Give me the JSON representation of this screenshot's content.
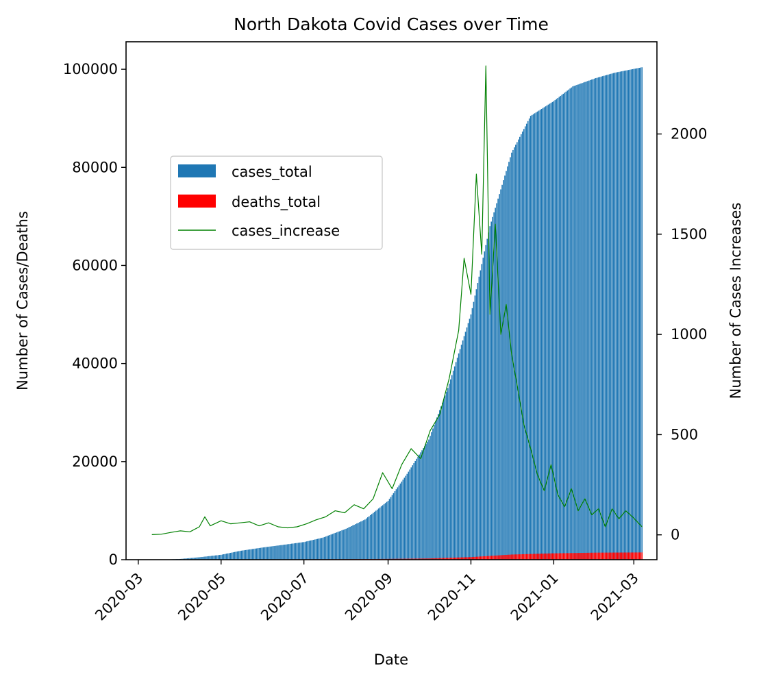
{
  "chart_data": {
    "type": "bar",
    "title": "North Dakota Covid Cases over Time",
    "xlabel": "Date",
    "ylabel": "Number of Cases/Deaths",
    "y2label": "Number of Cases Increases",
    "x_range": [
      "2020-02-21",
      "2021-03-18"
    ],
    "ylim": [
      0,
      105600
    ],
    "y2lim": [
      -124,
      2460
    ],
    "x_ticks": [
      "2020-03",
      "2020-05",
      "2020-07",
      "2020-09",
      "2020-11",
      "2021-01",
      "2021-03"
    ],
    "y_ticks": [
      0,
      20000,
      40000,
      60000,
      80000,
      100000
    ],
    "y2_ticks": [
      0,
      500,
      1000,
      1500,
      2000
    ],
    "legend": {
      "location": "upper-left",
      "entries": [
        "cases_total",
        "deaths_total",
        "cases_increase"
      ]
    },
    "grid": false,
    "colors": {
      "cases_total": "#1f77b4",
      "deaths_total": "#ff0000",
      "cases_increase": "#008000"
    },
    "series": [
      {
        "name": "cases_total",
        "axis": "left",
        "kind": "bar",
        "points": [
          [
            "2020-03-11",
            1
          ],
          [
            "2020-03-20",
            28
          ],
          [
            "2020-04-01",
            150
          ],
          [
            "2020-04-15",
            500
          ],
          [
            "2020-05-01",
            1000
          ],
          [
            "2020-05-15",
            1800
          ],
          [
            "2020-06-01",
            2500
          ],
          [
            "2020-06-15",
            3000
          ],
          [
            "2020-07-01",
            3600
          ],
          [
            "2020-07-15",
            4500
          ],
          [
            "2020-08-01",
            6300
          ],
          [
            "2020-08-15",
            8200
          ],
          [
            "2020-09-01",
            12000
          ],
          [
            "2020-09-15",
            17500
          ],
          [
            "2020-10-01",
            24500
          ],
          [
            "2020-10-15",
            35000
          ],
          [
            "2020-11-01",
            50000
          ],
          [
            "2020-11-15",
            68000
          ],
          [
            "2020-12-01",
            83000
          ],
          [
            "2020-12-15",
            90500
          ],
          [
            "2021-01-01",
            93500
          ],
          [
            "2021-01-15",
            96500
          ],
          [
            "2021-02-01",
            98200
          ],
          [
            "2021-02-15",
            99300
          ],
          [
            "2021-03-07",
            100400
          ]
        ]
      },
      {
        "name": "deaths_total",
        "axis": "left",
        "kind": "bar",
        "points": [
          [
            "2020-03-11",
            0
          ],
          [
            "2020-05-01",
            25
          ],
          [
            "2020-06-01",
            60
          ],
          [
            "2020-07-01",
            80
          ],
          [
            "2020-08-01",
            110
          ],
          [
            "2020-09-01",
            160
          ],
          [
            "2020-10-01",
            250
          ],
          [
            "2020-11-01",
            530
          ],
          [
            "2020-12-01",
            1050
          ],
          [
            "2021-01-01",
            1300
          ],
          [
            "2021-02-01",
            1440
          ],
          [
            "2021-03-07",
            1480
          ]
        ]
      },
      {
        "name": "cases_increase",
        "axis": "right",
        "kind": "line",
        "points": [
          [
            "2020-03-11",
            1
          ],
          [
            "2020-03-18",
            3
          ],
          [
            "2020-03-25",
            12
          ],
          [
            "2020-04-01",
            20
          ],
          [
            "2020-04-08",
            15
          ],
          [
            "2020-04-15",
            40
          ],
          [
            "2020-04-19",
            90
          ],
          [
            "2020-04-23",
            45
          ],
          [
            "2020-05-01",
            70
          ],
          [
            "2020-05-08",
            55
          ],
          [
            "2020-05-15",
            60
          ],
          [
            "2020-05-22",
            65
          ],
          [
            "2020-05-29",
            45
          ],
          [
            "2020-06-05",
            60
          ],
          [
            "2020-06-12",
            40
          ],
          [
            "2020-06-19",
            35
          ],
          [
            "2020-06-26",
            40
          ],
          [
            "2020-07-03",
            55
          ],
          [
            "2020-07-10",
            75
          ],
          [
            "2020-07-17",
            90
          ],
          [
            "2020-07-24",
            120
          ],
          [
            "2020-07-31",
            110
          ],
          [
            "2020-08-07",
            150
          ],
          [
            "2020-08-14",
            130
          ],
          [
            "2020-08-21",
            180
          ],
          [
            "2020-08-28",
            310
          ],
          [
            "2020-09-04",
            230
          ],
          [
            "2020-09-11",
            350
          ],
          [
            "2020-09-18",
            430
          ],
          [
            "2020-09-25",
            380
          ],
          [
            "2020-10-02",
            520
          ],
          [
            "2020-10-09",
            600
          ],
          [
            "2020-10-16",
            780
          ],
          [
            "2020-10-23",
            1020
          ],
          [
            "2020-10-27",
            1380
          ],
          [
            "2020-11-01",
            1200
          ],
          [
            "2020-11-05",
            1800
          ],
          [
            "2020-11-09",
            1400
          ],
          [
            "2020-11-12",
            2340
          ],
          [
            "2020-11-15",
            1100
          ],
          [
            "2020-11-19",
            1550
          ],
          [
            "2020-11-23",
            1000
          ],
          [
            "2020-11-27",
            1150
          ],
          [
            "2020-12-01",
            900
          ],
          [
            "2020-12-05",
            750
          ],
          [
            "2020-12-10",
            550
          ],
          [
            "2020-12-15",
            430
          ],
          [
            "2020-12-20",
            300
          ],
          [
            "2020-12-25",
            220
          ],
          [
            "2020-12-30",
            350
          ],
          [
            "2021-01-04",
            200
          ],
          [
            "2021-01-09",
            140
          ],
          [
            "2021-01-14",
            230
          ],
          [
            "2021-01-19",
            120
          ],
          [
            "2021-01-24",
            180
          ],
          [
            "2021-01-29",
            100
          ],
          [
            "2021-02-03",
            130
          ],
          [
            "2021-02-08",
            40
          ],
          [
            "2021-02-13",
            130
          ],
          [
            "2021-02-18",
            80
          ],
          [
            "2021-02-23",
            120
          ],
          [
            "2021-02-28",
            90
          ],
          [
            "2021-03-07",
            40
          ]
        ]
      }
    ]
  }
}
